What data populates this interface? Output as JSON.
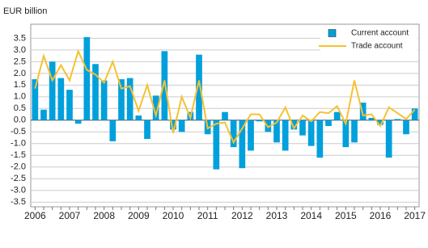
{
  "chart_data": {
    "type": "bar_line",
    "y_label": "EUR billion",
    "categories": [
      "2006",
      null,
      null,
      null,
      "2007",
      null,
      null,
      null,
      "2008",
      null,
      null,
      null,
      "2009",
      null,
      null,
      null,
      "2010",
      null,
      null,
      null,
      "2011",
      null,
      null,
      null,
      "2012",
      null,
      null,
      null,
      "2013",
      null,
      null,
      null,
      "2014",
      null,
      null,
      null,
      "2015",
      null,
      null,
      null,
      "2016",
      null,
      null,
      null,
      "2017"
    ],
    "series": [
      {
        "name": "Current account",
        "type": "bar",
        "color": "#00a0dc",
        "values": [
          1.75,
          0.45,
          2.5,
          1.8,
          1.3,
          -0.15,
          3.55,
          2.4,
          1.7,
          -0.9,
          1.75,
          1.8,
          0.2,
          -0.8,
          1.05,
          2.95,
          -0.4,
          -0.5,
          0.35,
          2.8,
          -0.6,
          -2.1,
          0.35,
          -1.15,
          -2.05,
          -1.3,
          -0.05,
          -0.5,
          -0.95,
          -1.3,
          -0.4,
          -0.65,
          -1.1,
          -1.6,
          -0.25,
          0.35,
          -1.15,
          -0.95,
          0.75,
          0.1,
          -0.2,
          -1.6,
          0.05,
          -0.6,
          0.5
        ]
      },
      {
        "name": "Trade account",
        "type": "line",
        "color": "#f6c130",
        "values": [
          1.35,
          2.75,
          1.7,
          2.35,
          1.7,
          2.95,
          2.15,
          1.95,
          1.6,
          2.5,
          1.35,
          1.45,
          0.4,
          1.5,
          0.2,
          1.7,
          -0.55,
          1.0,
          0.1,
          1.7,
          -0.35,
          -0.15,
          -0.1,
          -0.95,
          -0.35,
          0.25,
          0.25,
          -0.3,
          -0.1,
          0.55,
          -0.35,
          0.2,
          -0.05,
          0.35,
          0.3,
          0.6,
          -0.15,
          1.7,
          0.2,
          0.25,
          -0.25,
          0.55,
          0.3,
          0.05,
          0.45
        ]
      }
    ],
    "ylim": [
      -3.7,
      4.1
    ],
    "yticks": [
      {
        "value": -3.5,
        "label": "-3.5"
      },
      {
        "value": -3,
        "label": "-3.0"
      },
      -2.5,
      {
        "value": -2,
        "label": "-2.0"
      },
      -1.5,
      {
        "value": -1,
        "label": "-1.0"
      },
      -0.5,
      {
        "value": 0,
        "label": "0.0"
      },
      0.5,
      {
        "value": 1,
        "label": "1.0"
      },
      1.5,
      {
        "value": 2,
        "label": "2.0"
      },
      2.5,
      {
        "value": 3,
        "label": "3.0"
      },
      3.5
    ],
    "grid": true,
    "legend": "top-right"
  }
}
